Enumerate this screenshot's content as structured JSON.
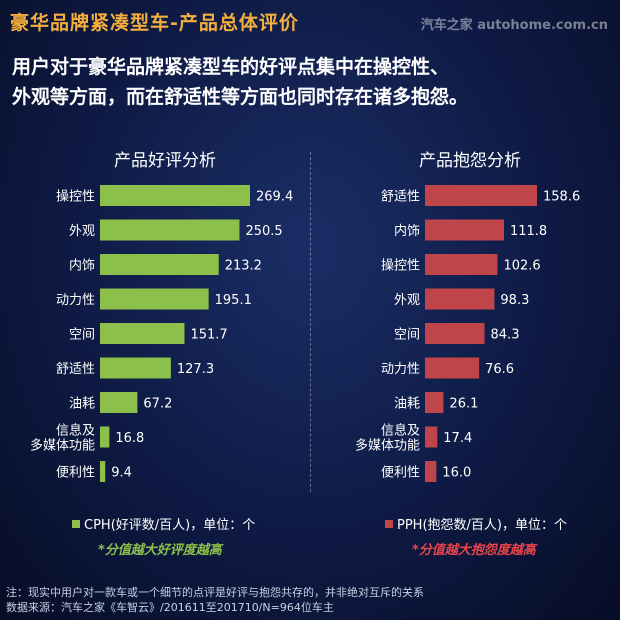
{
  "header": {
    "title": "豪华品牌紧凑型车-产品总体评价",
    "watermark": "汽车之家 autohome.com.cn"
  },
  "headline": {
    "line1": "用户对于豪华品牌紧凑型车的好评点集中在操控性、",
    "line2": "外观等方面，而在舒适性等方面也同时存在诸多抱怨。"
  },
  "chart_data": [
    {
      "type": "bar",
      "orientation": "horizontal",
      "title": "产品好评分析",
      "categories": [
        "操控性",
        "外观",
        "内饰",
        "动力性",
        "空间",
        "舒适性",
        "油耗",
        "信息及\n多媒体功能",
        "便利性"
      ],
      "series": [
        {
          "name": "CPH(好评数/百人)，单位：个",
          "values": [
            269.4,
            250.5,
            213.2,
            195.1,
            151.7,
            127.3,
            67.2,
            16.8,
            9.4
          ]
        }
      ],
      "note": "*分值越大好评度越高",
      "color": "#8cc04b",
      "note_color": "#8cc04b",
      "xlim": [
        0,
        269.4
      ]
    },
    {
      "type": "bar",
      "orientation": "horizontal",
      "title": "产品抱怨分析",
      "categories": [
        "舒适性",
        "内饰",
        "操控性",
        "外观",
        "空间",
        "动力性",
        "油耗",
        "信息及\n多媒体功能",
        "便利性"
      ],
      "series": [
        {
          "name": "PPH(抱怨数/百人)，单位：个",
          "values": [
            158.6,
            111.8,
            102.6,
            98.3,
            84.3,
            76.6,
            26.1,
            17.4,
            16.0
          ]
        }
      ],
      "note": "*分值越大抱怨度越高",
      "color": "#c0454a",
      "note_color": "#e8454a",
      "xlim": [
        0,
        158.6
      ]
    }
  ],
  "footer": {
    "line1": "注：现实中用户对一款车或一个细节的点评是好评与抱怨共存的，并非绝对互斥的关系",
    "line2": "数据来源：汽车之家《车智云》/201611至201710/N=964位车主"
  }
}
